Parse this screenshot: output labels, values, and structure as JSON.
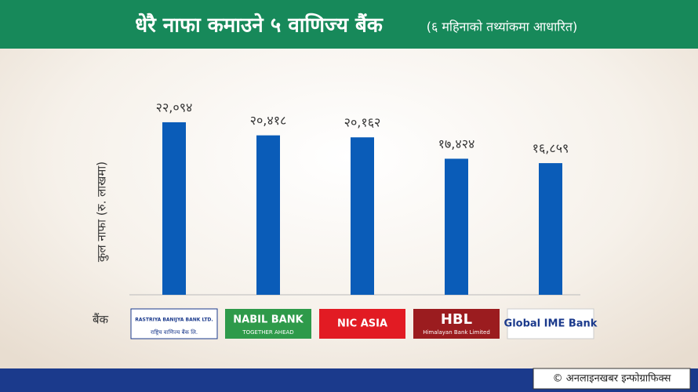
{
  "chart_data": {
    "type": "bar",
    "title": "धेरै नाफा कमाउने ५ वाणिज्य बैंक",
    "subtitle": "(६ महिनाको तथ्यांकमा आधारित)",
    "y_label": "कुल नाफा (रु. लाखमा)",
    "x_label": "बैंक",
    "categories": [
      "RASTRIYA BANIJYA BANK LTD.",
      "NABIL BANK",
      "NIC ASIA",
      "HBL",
      "Global IME Bank"
    ],
    "taglines": {
      "0": "राष्ट्रिय वाणिज्य बैंक लि.",
      "1": "TOGETHER AHEAD",
      "3": "Himalayan Bank Limited"
    },
    "values": [
      22094,
      20418,
      20162,
      17424,
      16859
    ],
    "value_labels": [
      "२२,०९४",
      "२०,४१८",
      "२०,१६२",
      "१७,४२४",
      "१६,८५९"
    ],
    "color": "#0a5cb8",
    "ylim": [
      0,
      25000
    ],
    "credit": "© अनलाइनखबर इन्फोग्राफिक्स"
  }
}
